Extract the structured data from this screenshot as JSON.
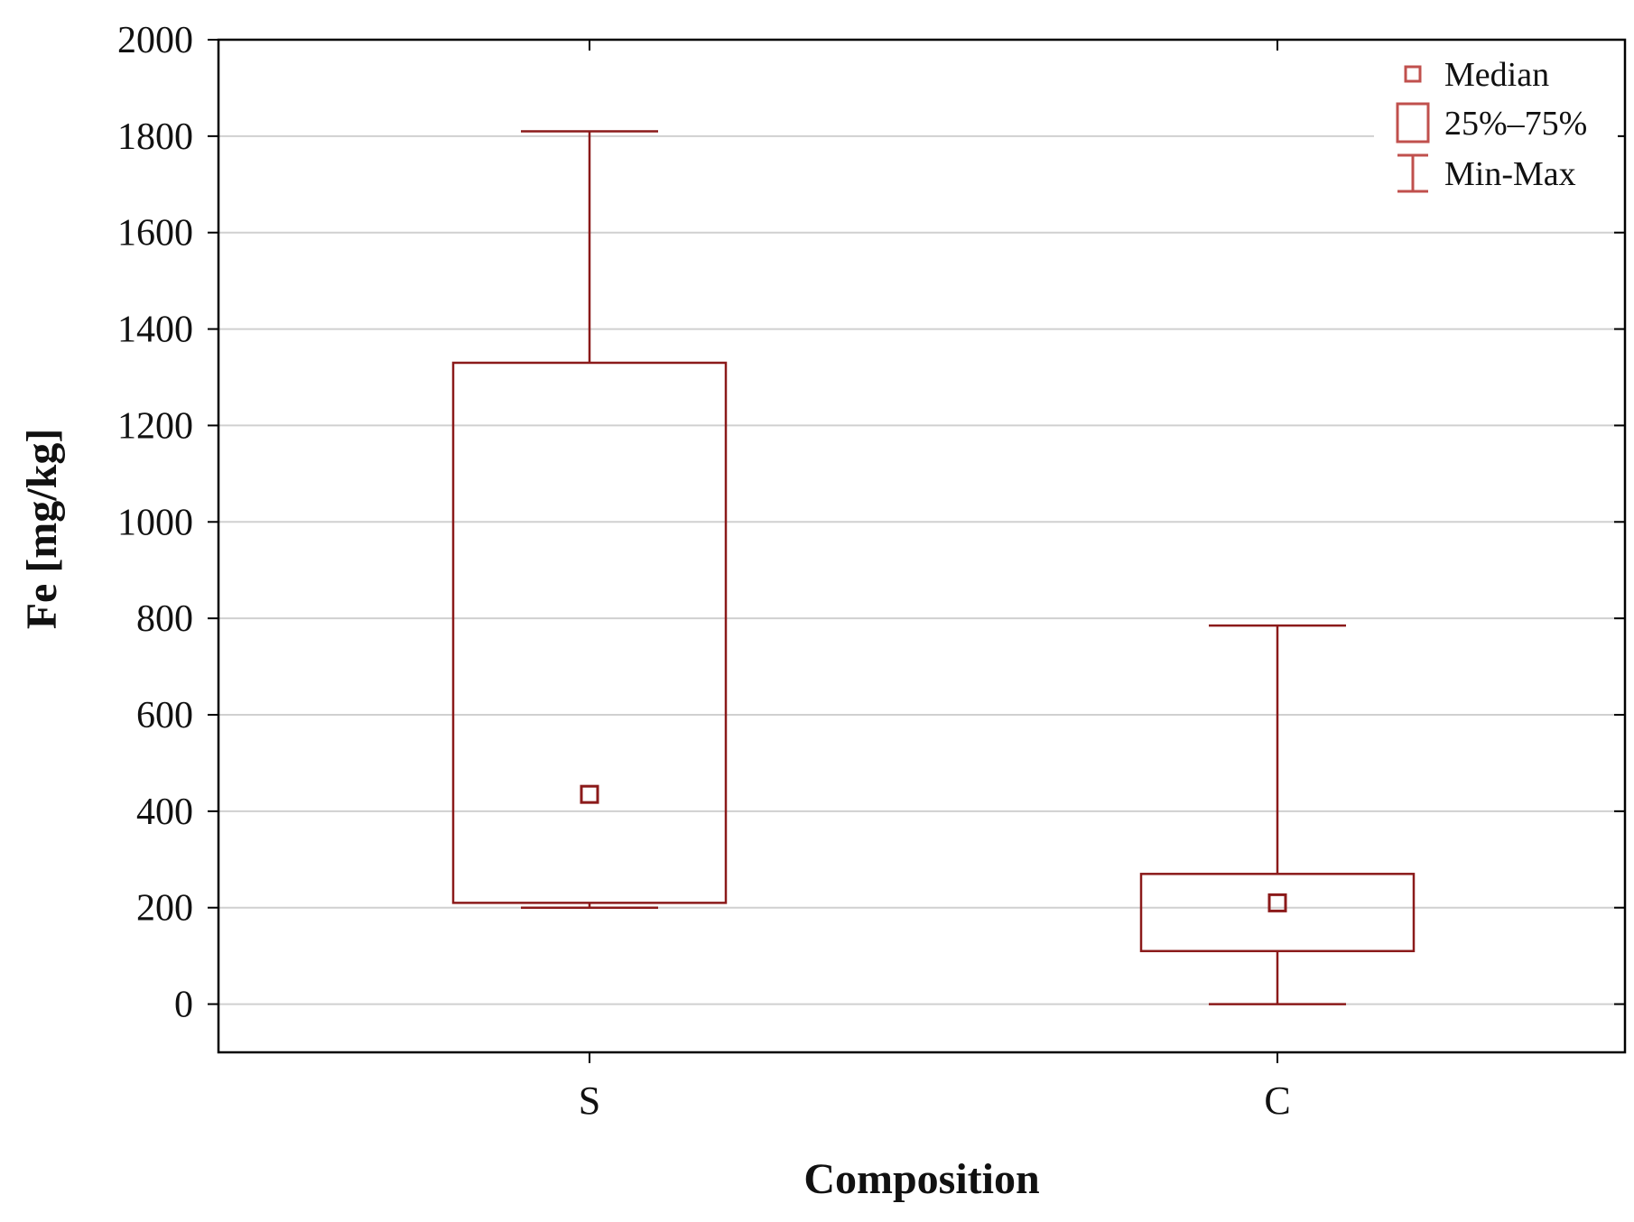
{
  "chart_data": {
    "type": "box",
    "title": "",
    "xlabel": "Composition",
    "ylabel": "Fe [mg/kg]",
    "ylim": [
      -100,
      2000
    ],
    "yticks": [
      0,
      200,
      400,
      600,
      800,
      1000,
      1200,
      1400,
      1600,
      1800,
      2000
    ],
    "ytick_labels": [
      "0",
      "200",
      "400",
      "600",
      "800",
      "1000",
      "1200",
      "1400",
      "1600",
      "1800",
      "2000"
    ],
    "categories": [
      "S",
      "C"
    ],
    "series": [
      {
        "category": "S",
        "min": 200,
        "q1": 210,
        "median": 435,
        "q3": 1330,
        "max": 1810
      },
      {
        "category": "C",
        "min": 0,
        "q1": 110,
        "median": 210,
        "q3": 270,
        "max": 785
      }
    ],
    "grid": "horizontal",
    "legend": {
      "position": "top-right",
      "items": [
        {
          "marker": "median-square",
          "label": "Median"
        },
        {
          "marker": "box",
          "label": "25%–75%"
        },
        {
          "marker": "whisker",
          "label": "Min-Max"
        }
      ]
    },
    "colors": {
      "box": "#8b1a1a",
      "legend_marker": "#c0504d",
      "grid": "#d0d0d0",
      "frame": "#000000"
    }
  }
}
